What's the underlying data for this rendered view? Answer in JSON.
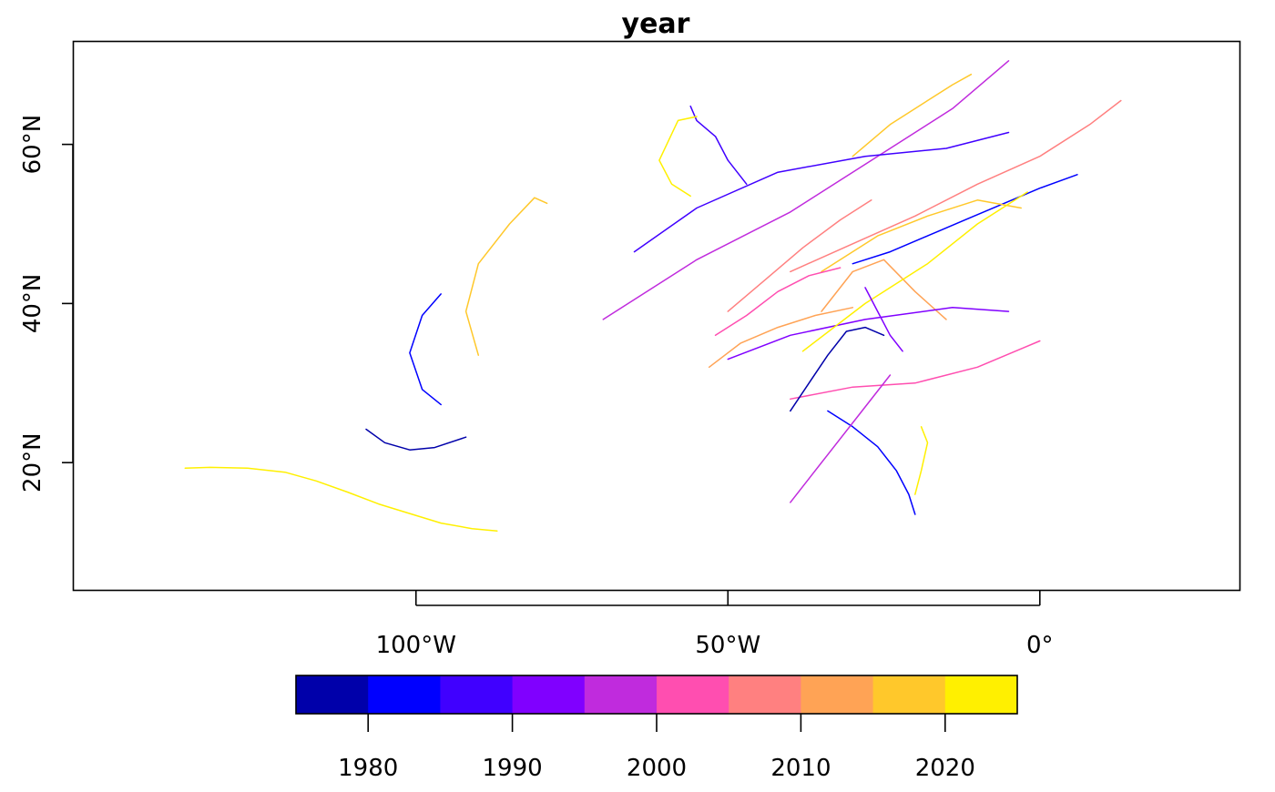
{
  "chart_data": {
    "type": "line",
    "title": "year",
    "xlabel": "",
    "ylabel": "",
    "xlim": [
      -155,
      32
    ],
    "ylim": [
      4,
      73
    ],
    "x_ticks": [
      {
        "value": -100,
        "label": "100°W"
      },
      {
        "value": -50,
        "label": "50°W"
      },
      {
        "value": 0,
        "label": "0°"
      }
    ],
    "y_ticks": [
      {
        "value": 20,
        "label": "20°N"
      },
      {
        "value": 40,
        "label": "40°N"
      },
      {
        "value": 60,
        "label": "60°N"
      }
    ],
    "grid": false,
    "legend": {
      "position": "bottom",
      "type": "colorbar",
      "bins": [
        1975,
        1980,
        1985,
        1990,
        1995,
        2000,
        2005,
        2010,
        2015,
        2020,
        2025
      ],
      "colors": [
        "#0000AA",
        "#0000FF",
        "#4000FF",
        "#8000FF",
        "#C02BDD",
        "#FF4EB0",
        "#FF8080",
        "#FFA355",
        "#FFC82B",
        "#FFF000"
      ],
      "tick_labels": [
        {
          "value": 1980,
          "label": "1980"
        },
        {
          "value": 1990,
          "label": "1990"
        },
        {
          "value": 2000,
          "label": "2000"
        },
        {
          "value": 2010,
          "label": "2010"
        },
        {
          "value": 2020,
          "label": "2020"
        }
      ]
    },
    "series": [
      {
        "year": 2022,
        "lon": [
          -137,
          -133,
          -127,
          -121,
          -116,
          -111,
          -106,
          -101,
          -96,
          -91,
          -87
        ],
        "lat": [
          19.3,
          19.4,
          19.3,
          18.8,
          17.7,
          16.3,
          14.8,
          13.6,
          12.4,
          11.7,
          11.4
        ]
      },
      {
        "year": 1977,
        "lon": [
          -108,
          -105,
          -101,
          -97,
          -92
        ],
        "lat": [
          24.2,
          22.5,
          21.6,
          21.9,
          23.2
        ]
      },
      {
        "year": 1983,
        "lon": [
          -96,
          -99,
          -101,
          -99,
          -96
        ],
        "lat": [
          41.2,
          38.5,
          33.8,
          29.2,
          27.3
        ]
      },
      {
        "year": 2019,
        "lon": [
          -79,
          -81,
          -85,
          -90,
          -92,
          -90
        ],
        "lat": [
          52.6,
          53.3,
          50.0,
          45.0,
          39.0,
          33.5
        ]
      },
      {
        "year": 1987,
        "lon": [
          -56,
          -55,
          -52,
          -50,
          -47
        ],
        "lat": [
          64.8,
          63.0,
          61.0,
          58.0,
          55.0
        ]
      },
      {
        "year": 2024,
        "lon": [
          -55,
          -58,
          -61,
          -59,
          -56
        ],
        "lat": [
          63.5,
          63.0,
          58.0,
          55.0,
          53.5
        ]
      },
      {
        "year": 1982,
        "lon": [
          -20,
          -21,
          -23,
          -26,
          -30,
          -34
        ],
        "lat": [
          13.5,
          16.0,
          19.0,
          22.0,
          24.5,
          26.5
        ]
      },
      {
        "year": 2023,
        "lon": [
          -20,
          -19,
          -18,
          -19
        ],
        "lat": [
          16.0,
          19.0,
          22.5,
          24.5
        ]
      },
      {
        "year": 1981,
        "lon": [
          -30,
          -24,
          -18,
          -12,
          -6,
          0,
          6
        ],
        "lat": [
          45.0,
          46.5,
          48.5,
          50.5,
          52.5,
          54.5,
          56.2
        ]
      },
      {
        "year": 2006,
        "lon": [
          -40,
          -30,
          -20,
          -10,
          0,
          8,
          13
        ],
        "lat": [
          44.0,
          47.5,
          51.0,
          55.0,
          58.5,
          62.5,
          65.5
        ]
      },
      {
        "year": 1996,
        "lon": [
          -70,
          -55,
          -40,
          -28,
          -14,
          -5
        ],
        "lat": [
          38.0,
          45.5,
          51.5,
          57.5,
          64.5,
          70.5
        ]
      },
      {
        "year": 2002,
        "lon": [
          -40,
          -30,
          -20,
          -10,
          0
        ],
        "lat": [
          28.0,
          29.5,
          30.0,
          32.0,
          35.3
        ]
      },
      {
        "year": 2016,
        "lon": [
          -30,
          -24,
          -18,
          -14,
          -11
        ],
        "lat": [
          58.5,
          62.5,
          65.5,
          67.5,
          68.8
        ]
      },
      {
        "year": 1979,
        "lon": [
          -40,
          -37,
          -34,
          -31,
          -28,
          -25
        ],
        "lat": [
          26.5,
          30.0,
          33.5,
          36.5,
          37.0,
          36.0
        ]
      },
      {
        "year": 2011,
        "lon": [
          -35,
          -30,
          -25,
          -20,
          -15
        ],
        "lat": [
          39.0,
          44.0,
          45.5,
          41.5,
          38.0
        ]
      },
      {
        "year": 1993,
        "lon": [
          -50,
          -40,
          -28,
          -14,
          -5
        ],
        "lat": [
          33.0,
          36.0,
          38.0,
          39.5,
          39.0
        ]
      },
      {
        "year": 2018,
        "lon": [
          -35,
          -26,
          -18,
          -10,
          -3
        ],
        "lat": [
          44.0,
          48.5,
          51.0,
          53.0,
          52.0
        ]
      },
      {
        "year": 2021,
        "lon": [
          -38,
          -28,
          -18,
          -10,
          -2
        ],
        "lat": [
          34.0,
          40.0,
          45.0,
          50.0,
          54.0
        ]
      },
      {
        "year": 1985,
        "lon": [
          -65,
          -55,
          -42,
          -28,
          -15,
          -5
        ],
        "lat": [
          46.5,
          52.0,
          56.5,
          58.5,
          59.5,
          61.5
        ]
      },
      {
        "year": 2009,
        "lon": [
          -50,
          -44,
          -38,
          -32,
          -27
        ],
        "lat": [
          39.0,
          43.0,
          47.0,
          50.5,
          53.0
        ]
      },
      {
        "year": 1991,
        "lon": [
          -28,
          -26,
          -24,
          -22
        ],
        "lat": [
          42.0,
          39.0,
          36.0,
          34.0
        ]
      },
      {
        "year": 2004,
        "lon": [
          -52,
          -47,
          -42,
          -37,
          -32
        ],
        "lat": [
          36.0,
          38.5,
          41.5,
          43.5,
          44.5
        ]
      },
      {
        "year": 2013,
        "lon": [
          -53,
          -48,
          -42,
          -36,
          -30
        ],
        "lat": [
          32.0,
          35.0,
          37.0,
          38.5,
          39.5
        ]
      },
      {
        "year": 1998,
        "lon": [
          -40,
          -34,
          -28,
          -24
        ],
        "lat": [
          15.0,
          21.0,
          27.0,
          31.0
        ]
      }
    ]
  }
}
